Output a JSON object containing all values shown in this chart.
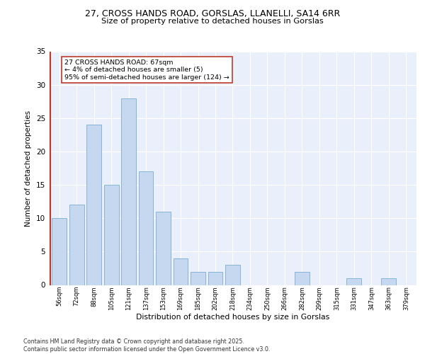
{
  "title_line1": "27, CROSS HANDS ROAD, GORSLAS, LLANELLI, SA14 6RR",
  "title_line2": "Size of property relative to detached houses in Gorslas",
  "xlabel": "Distribution of detached houses by size in Gorslas",
  "ylabel": "Number of detached properties",
  "categories": [
    "56sqm",
    "72sqm",
    "88sqm",
    "105sqm",
    "121sqm",
    "137sqm",
    "153sqm",
    "169sqm",
    "185sqm",
    "202sqm",
    "218sqm",
    "234sqm",
    "250sqm",
    "266sqm",
    "282sqm",
    "299sqm",
    "315sqm",
    "331sqm",
    "347sqm",
    "363sqm",
    "379sqm"
  ],
  "values": [
    10,
    12,
    24,
    15,
    28,
    17,
    11,
    4,
    2,
    2,
    3,
    0,
    0,
    0,
    2,
    0,
    0,
    1,
    0,
    1,
    0
  ],
  "bar_color": "#c5d8f0",
  "bar_edge_color": "#7aadd4",
  "vline_color": "#c0392b",
  "annotation_text": "27 CROSS HANDS ROAD: 67sqm\n← 4% of detached houses are smaller (5)\n95% of semi-detached houses are larger (124) →",
  "annotation_box_color": "#ffffff",
  "annotation_box_edge": "#c0392b",
  "ylim": [
    0,
    35
  ],
  "yticks": [
    0,
    5,
    10,
    15,
    20,
    25,
    30,
    35
  ],
  "background_color": "#eaf0fb",
  "grid_color": "#ffffff",
  "footer_line1": "Contains HM Land Registry data © Crown copyright and database right 2025.",
  "footer_line2": "Contains public sector information licensed under the Open Government Licence v3.0."
}
